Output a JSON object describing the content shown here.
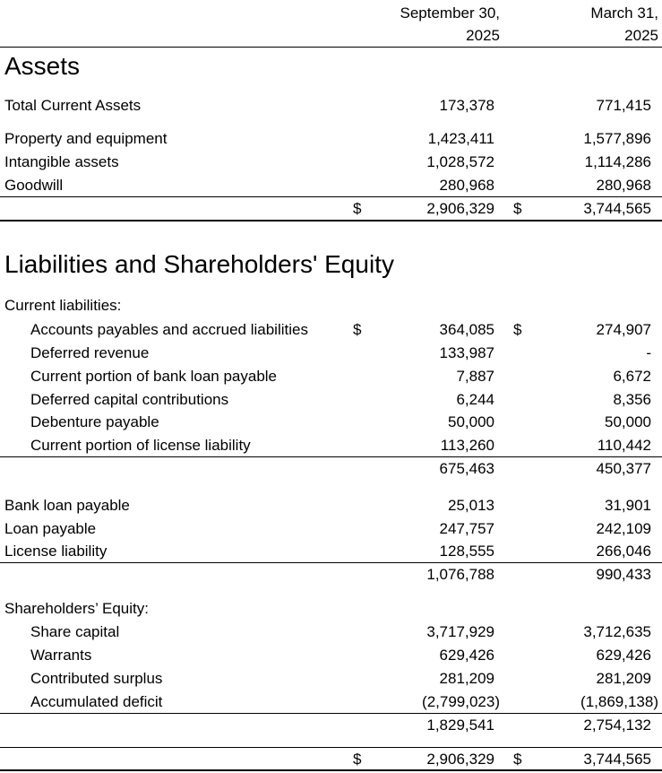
{
  "columns": [
    {
      "line1": "September 30,",
      "line2": "2025"
    },
    {
      "line1": "March 31,",
      "line2": "2025"
    }
  ],
  "currency_symbol": "$",
  "headings": {
    "assets": "Assets",
    "liabilities": "Liabilities and Shareholders' Equity"
  },
  "rows": [
    {
      "label": "Total Current Assets",
      "level": 0,
      "v1": "173,378",
      "v2": "771,415"
    },
    {
      "label": "Property and equipment",
      "level": 0,
      "v1": "1,423,411",
      "v2": "1,577,896"
    },
    {
      "label": "Intangible assets",
      "level": 0,
      "v1": "1,028,572",
      "v2": "1,114,286"
    },
    {
      "label": "Goodwill",
      "level": 0,
      "v1": "280,968",
      "v2": "280,968"
    },
    {
      "label": "",
      "level": 0,
      "v1": "2,906,329",
      "v2": "3,744,565",
      "dollar": true
    },
    {
      "label": "Current liabilities:",
      "level": 0,
      "v1": "",
      "v2": ""
    },
    {
      "label": "Accounts payables and accrued liabilities",
      "level": 1,
      "v1": "364,085",
      "v2": "274,907",
      "dollar": true
    },
    {
      "label": "Deferred revenue",
      "level": 1,
      "v1": "133,987",
      "v2": "-"
    },
    {
      "label": "Current portion of bank loan payable",
      "level": 1,
      "v1": "7,887",
      "v2": "6,672"
    },
    {
      "label": "Deferred capital contributions",
      "level": 1,
      "v1": "6,244",
      "v2": "8,356"
    },
    {
      "label": "Debenture payable",
      "level": 1,
      "v1": "50,000",
      "v2": "50,000"
    },
    {
      "label": "Current portion of license liability",
      "level": 1,
      "v1": "113,260",
      "v2": "110,442"
    },
    {
      "label": "",
      "level": 0,
      "v1": "675,463",
      "v2": "450,377"
    },
    {
      "label": "Bank loan payable",
      "level": 0,
      "v1": "25,013",
      "v2": "31,901"
    },
    {
      "label": "Loan payable",
      "level": 0,
      "v1": "247,757",
      "v2": "242,109"
    },
    {
      "label": "License liability",
      "level": 0,
      "v1": "128,555",
      "v2": "266,046"
    },
    {
      "label": "",
      "level": 0,
      "v1": "1,076,788",
      "v2": "990,433"
    },
    {
      "label": "Shareholders’ Equity:",
      "level": 0,
      "v1": "",
      "v2": ""
    },
    {
      "label": "Share capital",
      "level": 1,
      "v1": "3,717,929",
      "v2": "3,712,635"
    },
    {
      "label": "Warrants",
      "level": 1,
      "v1": "629,426",
      "v2": "629,426"
    },
    {
      "label": "Contributed surplus",
      "level": 1,
      "v1": "281,209",
      "v2": "281,209"
    },
    {
      "label": "Accumulated deficit",
      "level": 1,
      "v1": "(2,799,023)",
      "v2": "(1,869,138)"
    },
    {
      "label": "",
      "level": 0,
      "v1": "1,829,541",
      "v2": "2,754,132"
    },
    {
      "label": "",
      "level": 0,
      "v1": "2,906,329",
      "v2": "3,744,565",
      "dollar": true
    }
  ]
}
